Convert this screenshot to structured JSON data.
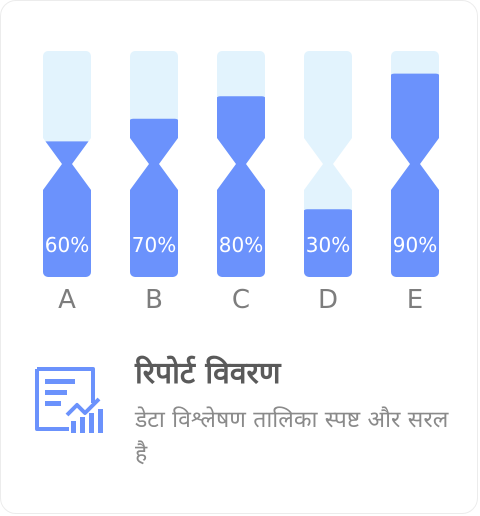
{
  "chart_data": {
    "type": "bar",
    "categories": [
      "A",
      "B",
      "C",
      "D",
      "E"
    ],
    "values": [
      60,
      70,
      80,
      30,
      90
    ],
    "value_labels": [
      "60%",
      "70%",
      "80%",
      "30%",
      "90%"
    ],
    "ylim": [
      0,
      100
    ],
    "grid": false,
    "colors": {
      "fill": "#6B92FC",
      "track": "#E2F3FD",
      "label": "#FFFFFF",
      "category": "#7d7d7d"
    }
  },
  "footer": {
    "icon": "report-chart-icon",
    "title": "रिपोर्ट विवरण",
    "subtitle": "डेटा विश्लेषण तालिका स्पष्ट और सरल है"
  }
}
